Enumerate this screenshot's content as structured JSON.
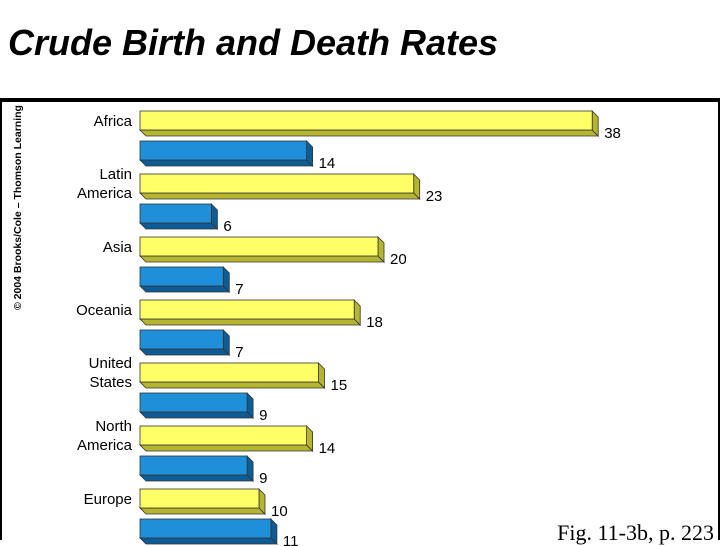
{
  "slide": {
    "title": "Crude Birth and Death Rates",
    "copyright": "© 2004 Brooks/Cole – Thomson Learning",
    "caption": "Fig. 11-3b, p. 223"
  },
  "colors": {
    "birth_bar": "#FFFF66",
    "birth_bar_dark": "#B5B530",
    "death_bar": "#1E8FD8",
    "death_bar_dark": "#0E5C96",
    "rule": "#000000"
  },
  "chart_data": {
    "type": "bar",
    "orientation": "horizontal",
    "title": "Crude Birth and Death Rates",
    "categories": [
      [
        "Africa"
      ],
      [
        "Latin",
        "America"
      ],
      [
        "Asia"
      ],
      [
        "Oceania"
      ],
      [
        "United",
        "States"
      ],
      [
        "North",
        "America"
      ],
      [
        "Europe"
      ]
    ],
    "series": [
      {
        "values": [
          38,
          23,
          20,
          18,
          15,
          14,
          10
        ]
      },
      {
        "values": [
          14,
          6,
          7,
          7,
          9,
          9,
          11
        ]
      }
    ],
    "xlim": [
      0,
      38
    ]
  }
}
